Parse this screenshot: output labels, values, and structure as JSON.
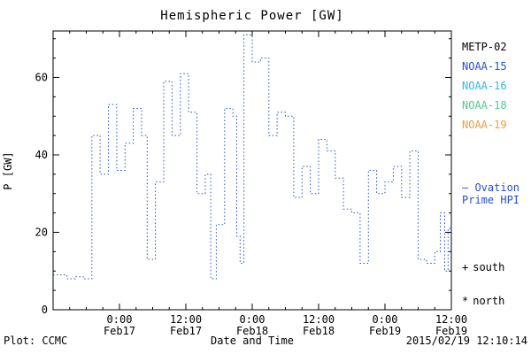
{
  "footer": {
    "plot_credit": "Plot: CCMC",
    "timestamp": "2015/02/19 12:10:14"
  },
  "legend": {
    "satellites": [
      {
        "label": "METP-02",
        "color": "#000000"
      },
      {
        "label": "NOAA-15",
        "color": "#2850c8"
      },
      {
        "label": "NOAA-16",
        "color": "#30b8e0"
      },
      {
        "label": "NOAA-18",
        "color": "#50c890"
      },
      {
        "label": "NOAA-19",
        "color": "#e8a040"
      }
    ],
    "ovation": {
      "line1": "— Ovation",
      "line2": "Prime HPI",
      "color": "#2850c8"
    },
    "markers": [
      {
        "symbol": "+",
        "label": "south"
      },
      {
        "symbol": "*",
        "label": "north"
      }
    ]
  },
  "chart_data": {
    "type": "line",
    "style": "dotted-step",
    "title": "Hemispheric Power [GW]",
    "xlabel": "Date and Time",
    "ylabel": "P [GW]",
    "x_start": "2015-02-16 12:00",
    "x_end": "2015-02-19 12:00",
    "x_span_hours": 72,
    "ylim": [
      0,
      72
    ],
    "y_ticks": [
      0,
      20,
      40,
      60
    ],
    "x_ticks": [
      {
        "hours": 12,
        "line1": "0:00",
        "line2": "Feb17"
      },
      {
        "hours": 24,
        "line1": "12:00",
        "line2": "Feb17"
      },
      {
        "hours": 36,
        "line1": "0:00",
        "line2": "Feb18"
      },
      {
        "hours": 48,
        "line1": "12:00",
        "line2": "Feb18"
      },
      {
        "hours": 60,
        "line1": "0:00",
        "line2": "Feb19"
      },
      {
        "hours": 72,
        "line1": "12:00",
        "line2": "Feb19"
      }
    ],
    "legend_position": "right",
    "grid": false,
    "series": [
      {
        "name": "Ovation Prime HPI",
        "color": "#2850c8",
        "points": [
          [
            0,
            9
          ],
          [
            2.5,
            8
          ],
          [
            4,
            8.5
          ],
          [
            5.5,
            8
          ],
          [
            7,
            45
          ],
          [
            8.5,
            35
          ],
          [
            10,
            53
          ],
          [
            11.5,
            36
          ],
          [
            13,
            43
          ],
          [
            14.5,
            52
          ],
          [
            16,
            45
          ],
          [
            17,
            13
          ],
          [
            18.5,
            33
          ],
          [
            20,
            59
          ],
          [
            21.5,
            45
          ],
          [
            23,
            61
          ],
          [
            24.5,
            51
          ],
          [
            26,
            30
          ],
          [
            27.5,
            35
          ],
          [
            28.5,
            8
          ],
          [
            29.5,
            22
          ],
          [
            31,
            52
          ],
          [
            32.5,
            50
          ],
          [
            33.2,
            19
          ],
          [
            33.8,
            12
          ],
          [
            34.5,
            71
          ],
          [
            36,
            64
          ],
          [
            37.5,
            65
          ],
          [
            39,
            45
          ],
          [
            40.5,
            51
          ],
          [
            42,
            50
          ],
          [
            43.5,
            29
          ],
          [
            45,
            37
          ],
          [
            46.5,
            30
          ],
          [
            48,
            44
          ],
          [
            49.5,
            41
          ],
          [
            51,
            34
          ],
          [
            52.5,
            26
          ],
          [
            54,
            25
          ],
          [
            55.5,
            12
          ],
          [
            57,
            36
          ],
          [
            58.5,
            30
          ],
          [
            60,
            33
          ],
          [
            61.5,
            37
          ],
          [
            63,
            29
          ],
          [
            64.5,
            41
          ],
          [
            66,
            13
          ],
          [
            67.5,
            12
          ],
          [
            69,
            15
          ],
          [
            70,
            25
          ],
          [
            70.8,
            10
          ],
          [
            71.4,
            21
          ]
        ]
      }
    ]
  }
}
